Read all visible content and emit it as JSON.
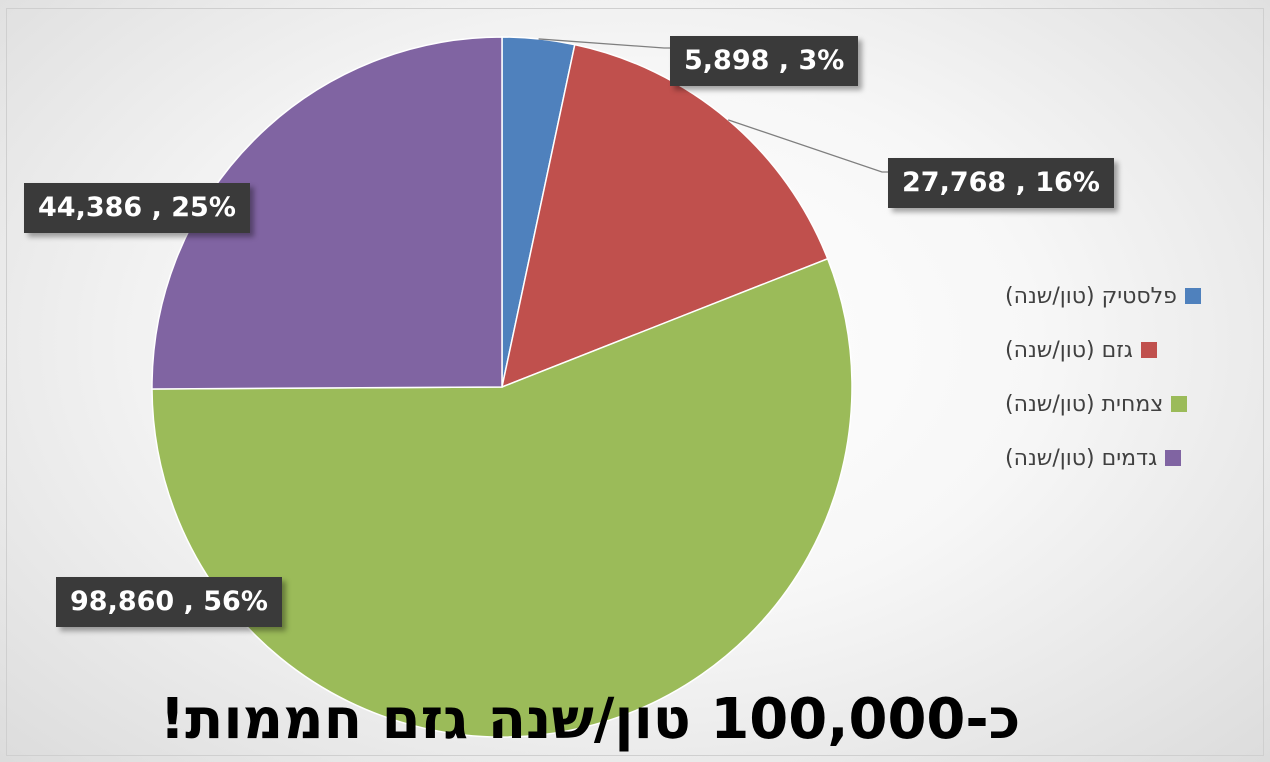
{
  "title": "כ-100,000 טון/שנה גזם חממות!",
  "chart_data": {
    "type": "pie",
    "categories": [
      "פלסטיק (טון/שנה)",
      "גזם (טון/שנה)",
      "צמחית (טון/שנה)",
      "גדמים (טון/שנה)"
    ],
    "values": [
      5898,
      27768,
      98860,
      44386
    ],
    "percent_labels": [
      "3%",
      "16%",
      "56%",
      "25%"
    ],
    "data_labels": [
      "5,898 , 3%",
      "27,768 , 16%",
      "98,860 , 56%",
      "44,386 , 25%"
    ],
    "colors": [
      "#4F81BD",
      "#C0504D",
      "#9BBB59",
      "#8064A2"
    ],
    "legend_position": "right",
    "start_angle_deg": 0,
    "direction": "clockwise"
  }
}
